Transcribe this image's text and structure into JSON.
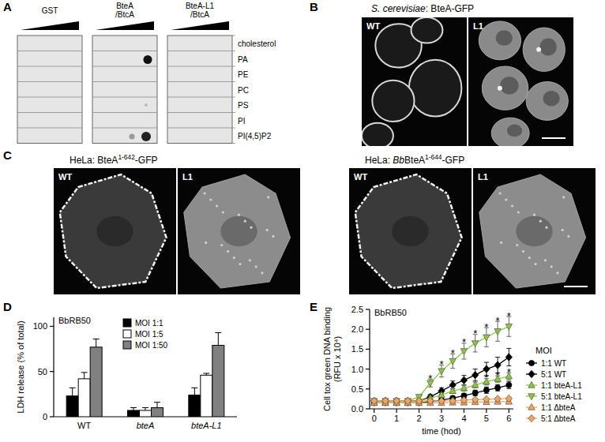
{
  "panels": {
    "A": {
      "label": "A",
      "columns": [
        [
          "GST"
        ],
        [
          "BteA",
          "/BtcA"
        ],
        [
          "BteA-L1",
          "/BtcA"
        ]
      ],
      "rows": [
        "cholesterol",
        "PA",
        "PE",
        "PC",
        "PS",
        "PI",
        "PI(4,5)P2"
      ]
    },
    "B": {
      "label": "B",
      "title": [
        {
          "text": "S. cerevisiae",
          "style": "italic"
        },
        {
          "text": ": BteA-GFP"
        }
      ],
      "images": [
        "WT",
        "L1"
      ]
    },
    "C": {
      "label": "C",
      "groups": [
        {
          "title": [
            {
              "text": "HeLa: BteA"
            },
            {
              "text": "1-642",
              "style": "sup"
            },
            {
              "text": "-GFP"
            }
          ],
          "images": [
            "WT",
            "L1"
          ]
        },
        {
          "title": [
            {
              "text": "HeLa: "
            },
            {
              "text": "Bb",
              "style": "italic"
            },
            {
              "text": "BteA"
            },
            {
              "text": "1-644",
              "style": "sup"
            },
            {
              "text": "-GFP"
            }
          ],
          "images": [
            "WT",
            "L1"
          ]
        }
      ]
    },
    "D": {
      "label": "D"
    },
    "E": {
      "label": "E"
    }
  },
  "chart_data": [
    {
      "type": "bar",
      "subtitle": "BbRB50",
      "ylabel": [
        "LDH release (% of total)"
      ],
      "categories": [
        "WT",
        "bteA",
        "bteA-L1"
      ],
      "series": [
        {
          "name": "MOI 1:1",
          "color": "#000000",
          "values": [
            23,
            7,
            24
          ],
          "errors": [
            9,
            3,
            8
          ]
        },
        {
          "name": "MOI 1:5",
          "color": "#ffffff",
          "values": [
            42,
            7,
            46
          ],
          "errors": [
            7,
            3,
            2
          ]
        },
        {
          "name": "MOI 1:50",
          "color": "#808080",
          "values": [
            77,
            10,
            79
          ],
          "errors": [
            9,
            6,
            14
          ]
        }
      ],
      "ylim": [
        0,
        110
      ],
      "yticks": [
        0,
        50,
        100
      ],
      "legend": "top"
    },
    {
      "type": "line",
      "subtitle": "BbRB50",
      "xlabel": "time (hod)",
      "ylabel": [
        "Cell tox green DNA binding",
        "(RFU x 10⁴)"
      ],
      "x": [
        0,
        0.5,
        1,
        1.5,
        2,
        2.5,
        3,
        3.5,
        4,
        4.5,
        5,
        5.5,
        6
      ],
      "series": [
        {
          "name": "1:1 WT",
          "color": "#000000",
          "marker": "circle",
          "values": [
            0.15,
            0.15,
            0.15,
            0.15,
            0.15,
            0.18,
            0.22,
            0.27,
            0.33,
            0.4,
            0.47,
            0.53,
            0.6
          ],
          "errors": [
            0.02,
            0.02,
            0.02,
            0.02,
            0.02,
            0.03,
            0.04,
            0.05,
            0.06,
            0.07,
            0.08,
            0.08,
            0.09
          ]
        },
        {
          "name": "5:1 WT",
          "color": "#000000",
          "marker": "diamond",
          "values": [
            0.2,
            0.2,
            0.2,
            0.2,
            0.2,
            0.3,
            0.45,
            0.6,
            0.72,
            0.85,
            1.0,
            1.1,
            1.3
          ],
          "errors": [
            0.03,
            0.03,
            0.03,
            0.03,
            0.04,
            0.06,
            0.08,
            0.1,
            0.12,
            0.15,
            0.17,
            0.2,
            0.22
          ]
        },
        {
          "name": "1:1 bteA-L1",
          "color": "#8cc63e",
          "marker": "triangle-up",
          "values": [
            0.15,
            0.15,
            0.15,
            0.15,
            0.2,
            0.27,
            0.35,
            0.45,
            0.52,
            0.6,
            0.68,
            0.75,
            0.82
          ],
          "errors": [
            0.02,
            0.02,
            0.02,
            0.02,
            0.03,
            0.04,
            0.05,
            0.06,
            0.07,
            0.07,
            0.08,
            0.08,
            0.09
          ]
        },
        {
          "name": "5:1 bteA-L1",
          "color": "#8cc63e",
          "marker": "triangle-down",
          "values": [
            0.2,
            0.2,
            0.2,
            0.2,
            0.3,
            0.65,
            0.95,
            1.2,
            1.45,
            1.65,
            1.8,
            1.95,
            2.07
          ],
          "errors": [
            0.03,
            0.03,
            0.03,
            0.03,
            0.05,
            0.1,
            0.15,
            0.18,
            0.2,
            0.22,
            0.24,
            0.25,
            0.25
          ]
        },
        {
          "name": "1:1 ΔbteA",
          "color": "#f4a460",
          "marker": "triangle-up",
          "values": [
            0.15,
            0.15,
            0.15,
            0.15,
            0.15,
            0.15,
            0.15,
            0.16,
            0.16,
            0.17,
            0.17,
            0.18,
            0.18
          ],
          "errors": [
            0.02,
            0.02,
            0.02,
            0.02,
            0.02,
            0.02,
            0.02,
            0.02,
            0.02,
            0.02,
            0.02,
            0.02,
            0.02
          ]
        },
        {
          "name": "5:1 ΔbteA",
          "color": "#f4a460",
          "marker": "diamond",
          "values": [
            0.2,
            0.2,
            0.2,
            0.2,
            0.2,
            0.2,
            0.2,
            0.2,
            0.22,
            0.23,
            0.24,
            0.25,
            0.26
          ],
          "errors": [
            0.02,
            0.02,
            0.02,
            0.02,
            0.02,
            0.02,
            0.02,
            0.02,
            0.03,
            0.03,
            0.03,
            0.03,
            0.03
          ]
        }
      ],
      "xlim": [
        -0.2,
        6.2
      ],
      "xticks": [
        0,
        1,
        2,
        3,
        4,
        5,
        6
      ],
      "ylim": [
        0,
        2.5
      ],
      "yticks": [
        {
          "value": 0,
          "label": "0.0"
        },
        {
          "value": 0.5,
          "label": "0.5"
        },
        {
          "value": 1,
          "label": "1.0"
        },
        {
          "value": 1.5,
          "label": "1.5"
        },
        {
          "value": 2,
          "label": "2.0"
        },
        {
          "value": 2.5,
          "label": "2.5"
        }
      ],
      "legend": "right",
      "legend_title": "MOI",
      "annotations": [
        {
          "text": "*",
          "x": 2.5,
          "y": 0.8
        },
        {
          "text": "*",
          "x": 3,
          "y": 1.15
        },
        {
          "text": "*",
          "x": 3.5,
          "y": 1.43
        },
        {
          "text": "*",
          "x": 4,
          "y": 1.7
        },
        {
          "text": "*",
          "x": 4.5,
          "y": 1.92
        },
        {
          "text": "*",
          "x": 5,
          "y": 2.09
        },
        {
          "text": "*",
          "x": 5.5,
          "y": 2.25
        },
        {
          "text": "*",
          "x": 6,
          "y": 2.37
        },
        {
          "text": "*",
          "x": 5,
          "y": 0.81
        },
        {
          "text": "*",
          "x": 5.5,
          "y": 0.88
        },
        {
          "text": "*",
          "x": 6,
          "y": 0.96
        }
      ]
    }
  ]
}
